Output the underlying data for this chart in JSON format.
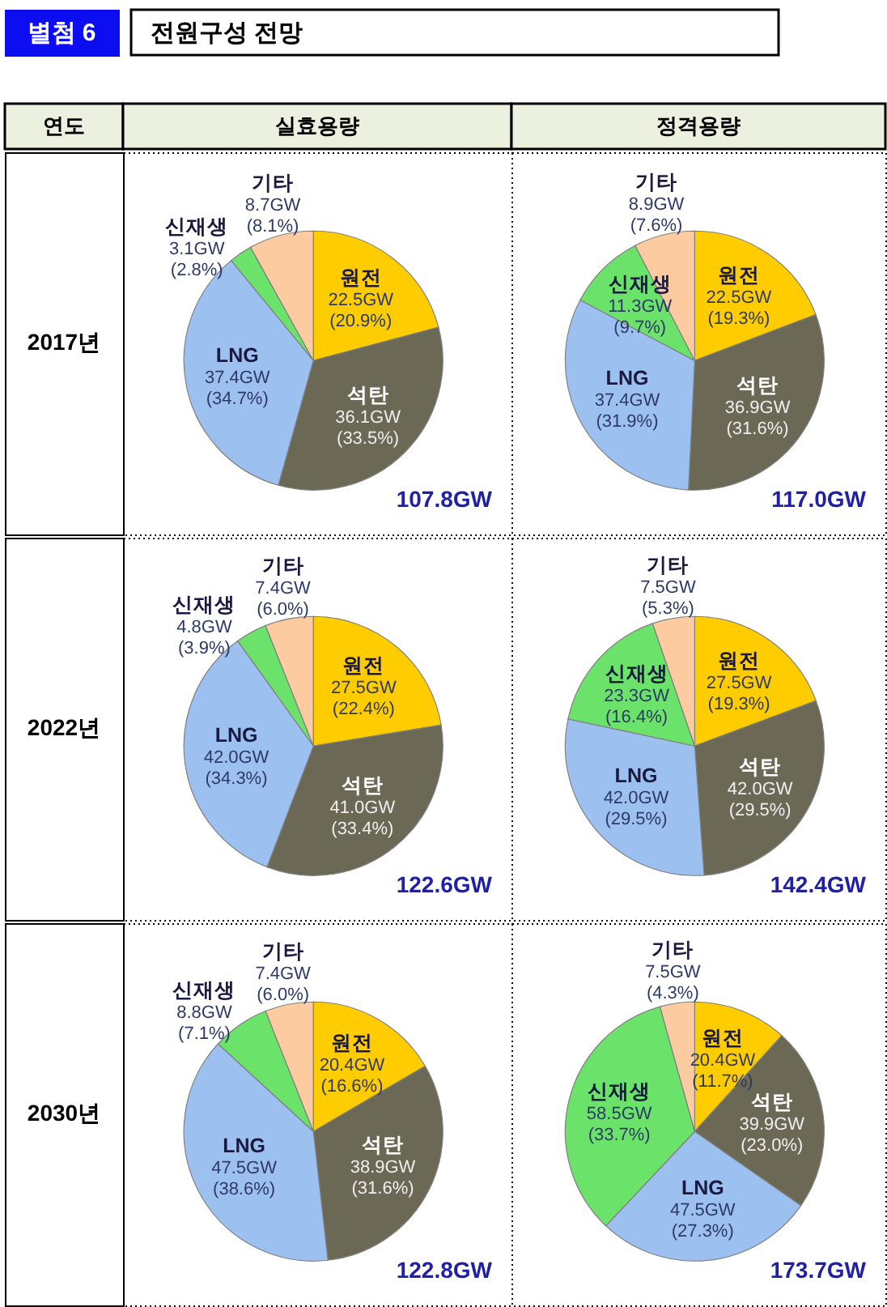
{
  "chart_data": [
    {
      "type": "other",
      "title": "전원구성 전망",
      "annotations": [
        "별첨 6",
        "연도",
        "실효용량",
        "정격용량",
        "2017년",
        "2022년",
        "2030년"
      ]
    },
    {
      "type": "pie",
      "categories": [
        "원전",
        "석탄",
        "LNG",
        "신재생",
        "기타"
      ],
      "values": [
        22.5,
        36.1,
        37.4,
        3.1,
        8.7
      ],
      "colors": [
        "#ffcc00",
        "#6b6855",
        "#9cc0f0",
        "#6be36b",
        "#fdcba0"
      ],
      "value_labels": [
        "22.5GW (20.9%)",
        "36.1GW (33.5%)",
        "37.4GW (34.7%)",
        "3.1GW (2.8%)",
        "8.7GW (8.1%)"
      ],
      "annotations": [
        "107.8GW"
      ]
    },
    {
      "type": "pie",
      "categories": [
        "원전",
        "석탄",
        "LNG",
        "신재생",
        "기타"
      ],
      "values": [
        22.5,
        36.9,
        37.4,
        11.3,
        8.9
      ],
      "colors": [
        "#ffcc00",
        "#6b6855",
        "#9cc0f0",
        "#6be36b",
        "#fdcba0"
      ],
      "value_labels": [
        "22.5GW (19.3%)",
        "36.9GW (31.6%)",
        "37.4GW (31.9%)",
        "11.3GW (9.7%)",
        "8.9GW (7.6%)"
      ],
      "annotations": [
        "117.0GW"
      ]
    },
    {
      "type": "pie",
      "categories": [
        "원전",
        "석탄",
        "LNG",
        "신재생",
        "기타"
      ],
      "values": [
        27.5,
        41.0,
        42.0,
        4.8,
        7.4
      ],
      "colors": [
        "#ffcc00",
        "#6b6855",
        "#9cc0f0",
        "#6be36b",
        "#fdcba0"
      ],
      "value_labels": [
        "27.5GW (22.4%)",
        "41.0GW (33.4%)",
        "42.0GW (34.3%)",
        "4.8GW (3.9%)",
        "7.4GW (6.0%)"
      ],
      "annotations": [
        "122.6GW"
      ]
    },
    {
      "type": "pie",
      "categories": [
        "원전",
        "석탄",
        "LNG",
        "신재생",
        "기타"
      ],
      "values": [
        27.5,
        42.0,
        42.0,
        23.3,
        7.5
      ],
      "colors": [
        "#ffcc00",
        "#6b6855",
        "#9cc0f0",
        "#6be36b",
        "#fdcba0"
      ],
      "value_labels": [
        "27.5GW (19.3%)",
        "42.0GW (29.5%)",
        "42.0GW (29.5%)",
        "23.3GW (16.4%)",
        "7.5GW (5.3%)"
      ],
      "annotations": [
        "142.4GW"
      ]
    },
    {
      "type": "pie",
      "categories": [
        "원전",
        "석탄",
        "LNG",
        "신재생",
        "기타"
      ],
      "values": [
        20.4,
        38.9,
        47.5,
        8.8,
        7.4
      ],
      "colors": [
        "#ffcc00",
        "#6b6855",
        "#9cc0f0",
        "#6be36b",
        "#fdcba0"
      ],
      "value_labels": [
        "20.4GW (16.6%)",
        "38.9GW (31.6%)",
        "47.5GW (38.6%)",
        "8.8GW (7.1%)",
        "7.4GW (6.0%)"
      ],
      "annotations": [
        "122.8GW"
      ]
    },
    {
      "type": "pie",
      "categories": [
        "원전",
        "석탄",
        "LNG",
        "신재생",
        "기타"
      ],
      "values": [
        20.4,
        39.9,
        47.5,
        58.5,
        7.5
      ],
      "colors": [
        "#ffcc00",
        "#6b6855",
        "#9cc0f0",
        "#6be36b",
        "#fdcba0"
      ],
      "value_labels": [
        "20.4GW (11.7%)",
        "39.9GW (23.0%)",
        "47.5GW (27.3%)",
        "58.5GW (33.7%)",
        "7.5GW (4.3%)"
      ],
      "annotations": [
        "173.7GW"
      ]
    }
  ]
}
